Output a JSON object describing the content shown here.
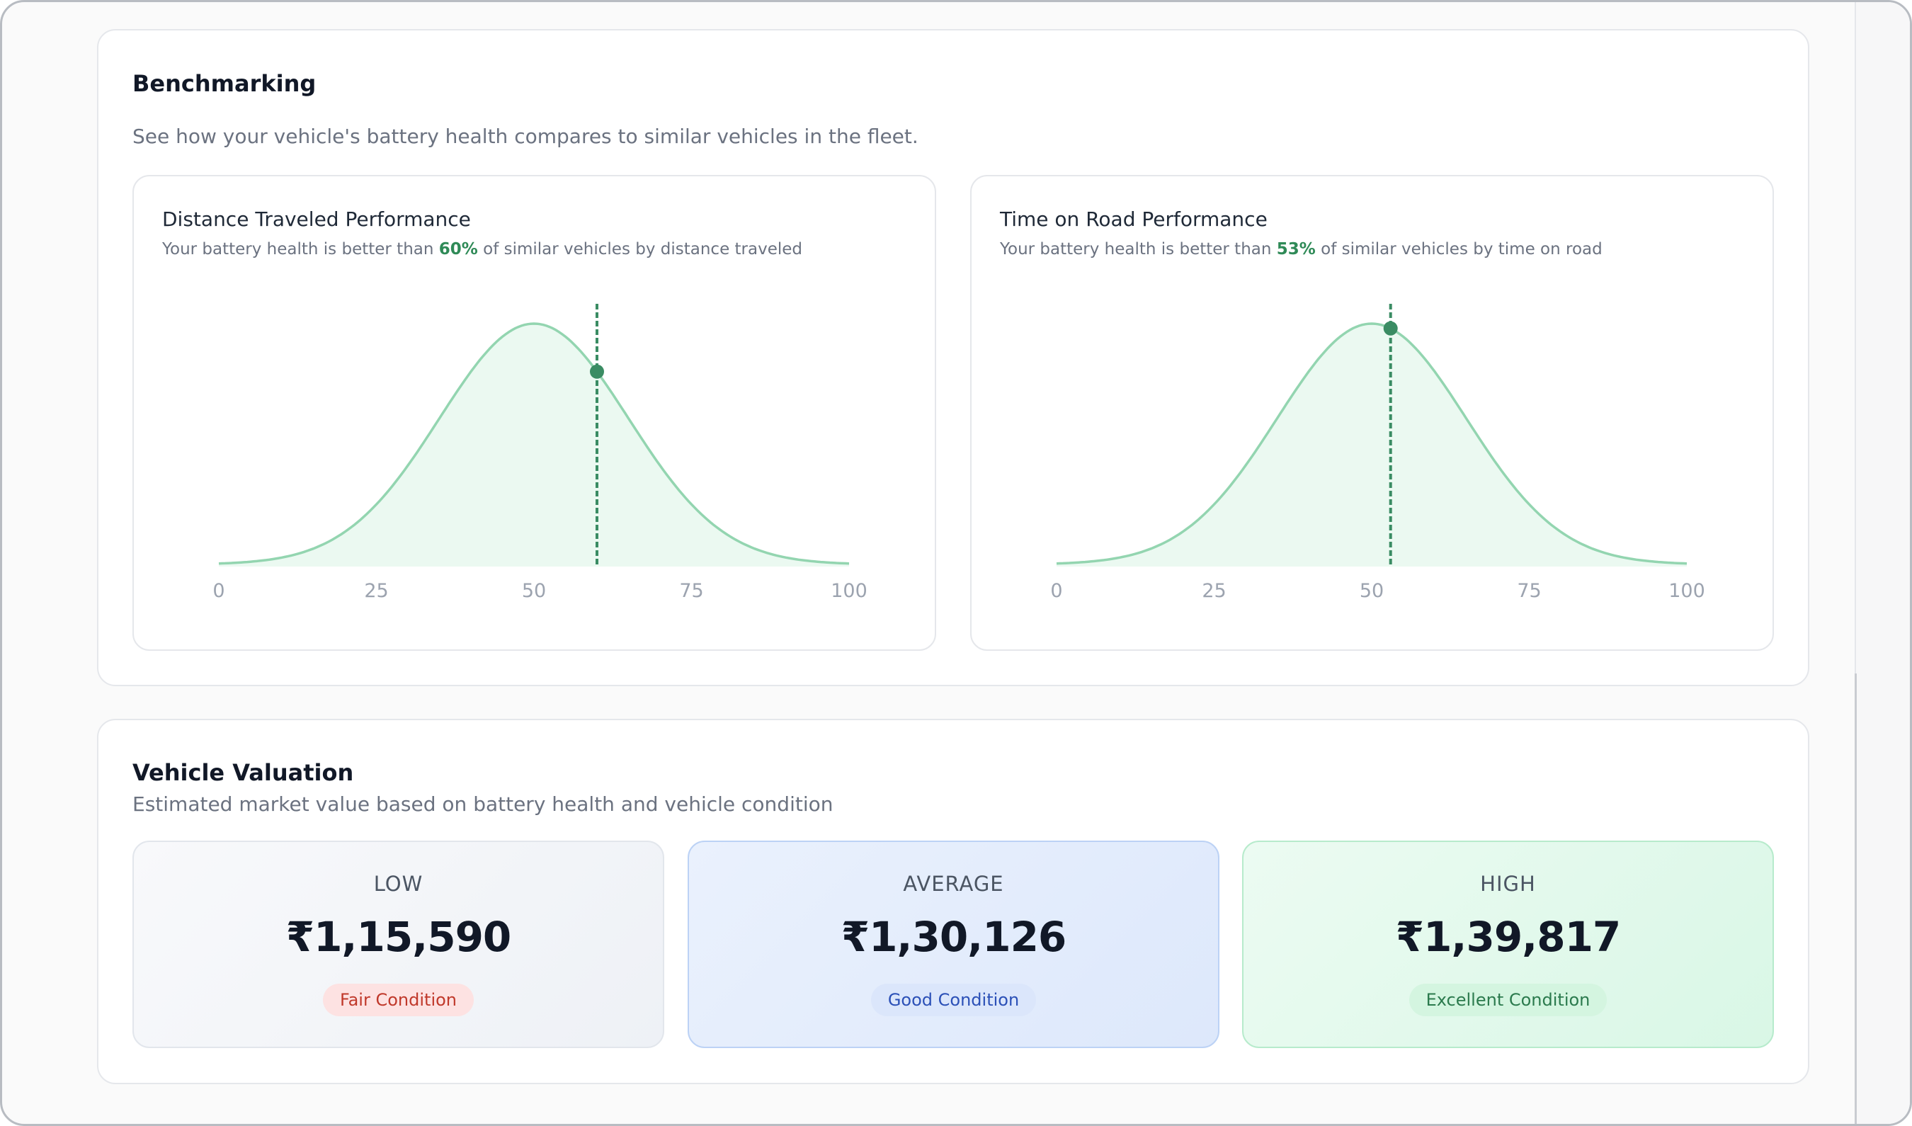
{
  "benchmarking": {
    "title": "Benchmarking",
    "subtitle": "See how your vehicle's battery health compares to similar vehicles in the fleet."
  },
  "colors": {
    "accent_green": "#2f8a57",
    "curve_stroke": "#93d5b0",
    "curve_fill": "#ebf9f1",
    "marker": "#3a8c63"
  },
  "chart_data": [
    {
      "type": "area",
      "title": "Distance Traveled Performance",
      "subtitle_prefix": "Your battery health is better than ",
      "highlight": "60%",
      "subtitle_suffix": " of similar vehicles by distance traveled",
      "x_ticks": [
        "0",
        "25",
        "50",
        "75",
        "100"
      ],
      "xlim": [
        0,
        100
      ],
      "distribution": {
        "shape": "normal",
        "mean": 50,
        "std": 15
      },
      "marker_x": 60
    },
    {
      "type": "area",
      "title": "Time on Road Performance",
      "subtitle_prefix": "Your battery health is better than ",
      "highlight": "53%",
      "subtitle_suffix": " of similar vehicles by time on road",
      "x_ticks": [
        "0",
        "25",
        "50",
        "75",
        "100"
      ],
      "xlim": [
        0,
        100
      ],
      "distribution": {
        "shape": "normal",
        "mean": 50,
        "std": 15
      },
      "marker_x": 53
    }
  ],
  "valuation": {
    "title": "Vehicle Valuation",
    "subtitle": "Estimated market value based on battery health and vehicle condition",
    "cards": [
      {
        "label": "LOW",
        "price": "₹1,15,590",
        "badge": "Fair Condition"
      },
      {
        "label": "AVERAGE",
        "price": "₹1,30,126",
        "badge": "Good Condition"
      },
      {
        "label": "HIGH",
        "price": "₹1,39,817",
        "badge": "Excellent Condition"
      }
    ]
  }
}
